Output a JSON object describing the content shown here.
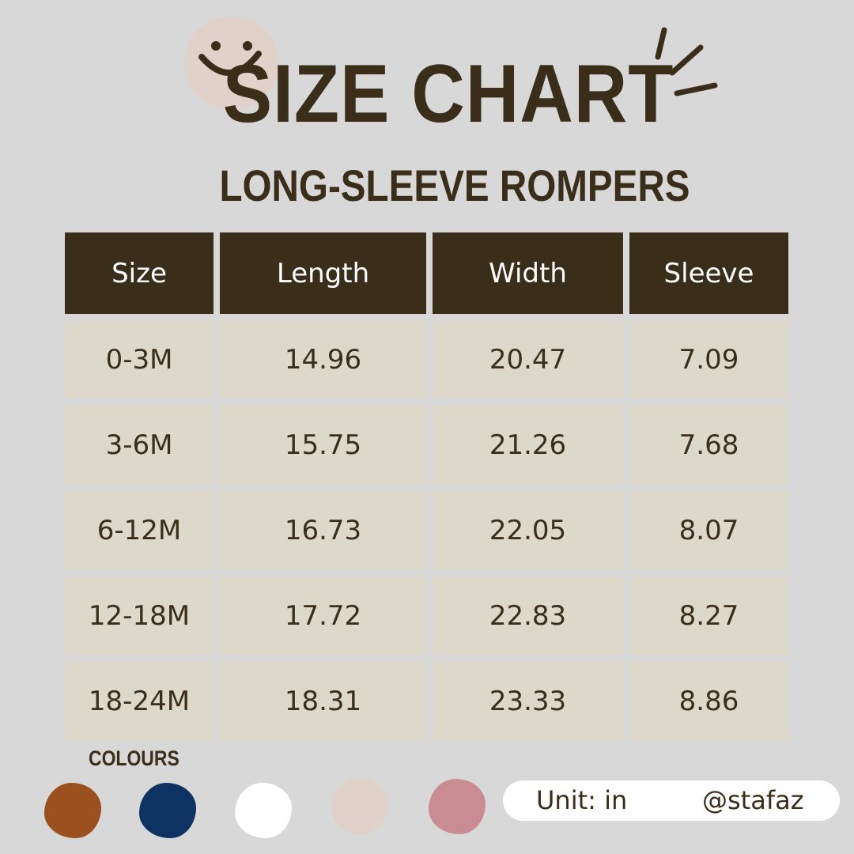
{
  "header": {
    "title": "SIZE CHART",
    "subtitle": "LONG-SLEEVE ROMPERS"
  },
  "table": {
    "columns": [
      "Size",
      "Length",
      "Width",
      "Sleeve"
    ],
    "rows": [
      [
        "0-3M",
        "14.96",
        "20.47",
        "7.09"
      ],
      [
        "3-6M",
        "15.75",
        "21.26",
        "7.68"
      ],
      [
        "6-12M",
        "16.73",
        "22.05",
        "8.07"
      ],
      [
        "12-18M",
        "17.72",
        "22.83",
        "8.27"
      ],
      [
        "18-24M",
        "18.31",
        "23.33",
        "8.86"
      ]
    ]
  },
  "colours": {
    "label": "COLOURS",
    "swatches": [
      "#9c4f1f",
      "#0e3261",
      "#ffffff",
      "#e0d2c8",
      "#c98c93"
    ]
  },
  "footer": {
    "unit": "Unit: in",
    "handle": "@stafaz"
  },
  "theme": {
    "background": "#d8d8d8",
    "header_bg": "#3a2e1b",
    "cell_bg": "#dcd9cb",
    "text": "#3a2e1b"
  }
}
